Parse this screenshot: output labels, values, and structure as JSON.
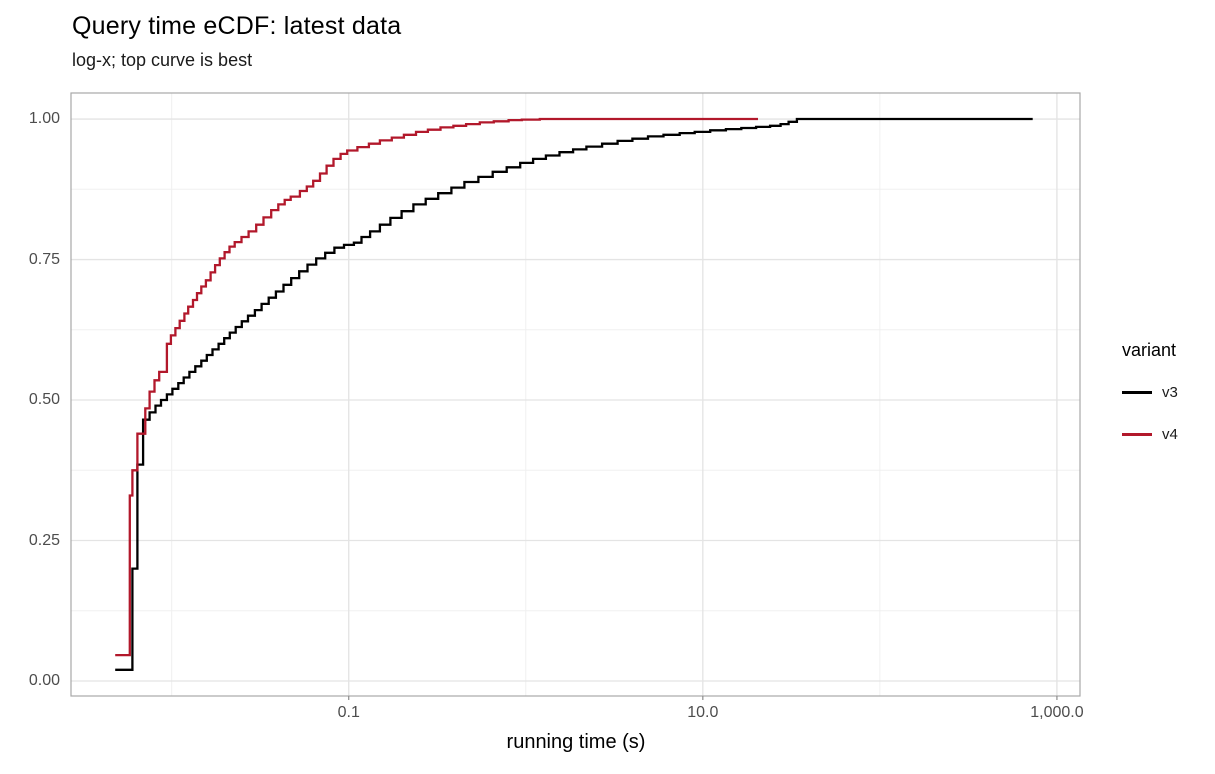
{
  "chart_data": {
    "type": "line",
    "subtype": "step-ecdf",
    "title": "Query time eCDF: latest data",
    "subtitle": "log-x; top curve is best",
    "xlabel": "running time (s)",
    "ylabel": "",
    "x_axis": {
      "scale": "log10",
      "min": 0.0027,
      "max": 1350,
      "major_ticks": [
        {
          "value": 0.1,
          "label": "0.1"
        },
        {
          "value": 10,
          "label": "10.0"
        },
        {
          "value": 1000,
          "label": "1,000.0"
        }
      ],
      "minor_ticks": [
        0.01,
        1,
        100
      ]
    },
    "y_axis": {
      "min": -0.0267,
      "max": 1.0463,
      "major_ticks": [
        {
          "value": 0.0,
          "label": "0.00"
        },
        {
          "value": 0.25,
          "label": "0.25"
        },
        {
          "value": 0.5,
          "label": "0.50"
        },
        {
          "value": 0.75,
          "label": "0.75"
        },
        {
          "value": 1.0,
          "label": "1.00"
        }
      ],
      "minor_ticks": [
        0.125,
        0.375,
        0.625,
        0.875
      ]
    },
    "legend": {
      "title": "variant",
      "position": "right"
    },
    "grid": true,
    "style": {
      "grid_major": "#e4e4e4",
      "grid_minor": "#f0f0f0",
      "panel_border": "#a8a8a8",
      "tick_mark": "#8c8c8c",
      "axis_text": "#4d4d4d"
    },
    "series": [
      {
        "name": "v3",
        "color": "#000000",
        "points": [
          [
            0.0048,
            0.02
          ],
          [
            0.006,
            0.2
          ],
          [
            0.0064,
            0.385
          ],
          [
            0.0069,
            0.465
          ],
          [
            0.0075,
            0.478
          ],
          [
            0.0081,
            0.49
          ],
          [
            0.0087,
            0.5
          ],
          [
            0.0094,
            0.51
          ],
          [
            0.0101,
            0.52
          ],
          [
            0.0109,
            0.53
          ],
          [
            0.0117,
            0.54
          ],
          [
            0.0126,
            0.55
          ],
          [
            0.0136,
            0.56
          ],
          [
            0.0147,
            0.57
          ],
          [
            0.0158,
            0.58
          ],
          [
            0.017,
            0.59
          ],
          [
            0.0184,
            0.6
          ],
          [
            0.0198,
            0.61
          ],
          [
            0.0213,
            0.62
          ],
          [
            0.023,
            0.63
          ],
          [
            0.0249,
            0.64
          ],
          [
            0.027,
            0.65
          ],
          [
            0.0295,
            0.66
          ],
          [
            0.0322,
            0.671
          ],
          [
            0.0353,
            0.682
          ],
          [
            0.0388,
            0.693
          ],
          [
            0.0428,
            0.705
          ],
          [
            0.0473,
            0.717
          ],
          [
            0.0525,
            0.729
          ],
          [
            0.0585,
            0.741
          ],
          [
            0.0655,
            0.752
          ],
          [
            0.0736,
            0.762
          ],
          [
            0.083,
            0.771
          ],
          [
            0.094,
            0.776
          ],
          [
            0.107,
            0.78
          ],
          [
            0.118,
            0.79
          ],
          [
            0.132,
            0.8
          ],
          [
            0.15,
            0.812
          ],
          [
            0.172,
            0.824
          ],
          [
            0.199,
            0.836
          ],
          [
            0.232,
            0.848
          ],
          [
            0.272,
            0.858
          ],
          [
            0.32,
            0.868
          ],
          [
            0.38,
            0.878
          ],
          [
            0.45,
            0.888
          ],
          [
            0.54,
            0.897
          ],
          [
            0.65,
            0.906
          ],
          [
            0.78,
            0.914
          ],
          [
            0.93,
            0.922
          ],
          [
            1.1,
            0.929
          ],
          [
            1.3,
            0.935
          ],
          [
            1.55,
            0.941
          ],
          [
            1.85,
            0.946
          ],
          [
            2.2,
            0.951
          ],
          [
            2.7,
            0.956
          ],
          [
            3.3,
            0.961
          ],
          [
            4.0,
            0.965
          ],
          [
            4.9,
            0.969
          ],
          [
            6.0,
            0.972
          ],
          [
            7.4,
            0.975
          ],
          [
            9.0,
            0.977
          ],
          [
            11.0,
            0.98
          ],
          [
            13.5,
            0.982
          ],
          [
            16.5,
            0.984
          ],
          [
            20.0,
            0.986
          ],
          [
            24.0,
            0.988
          ],
          [
            27.5,
            0.991
          ],
          [
            30.5,
            0.995
          ],
          [
            34.0,
            1.0
          ],
          [
            730.0,
            1.0
          ]
        ]
      },
      {
        "name": "v4",
        "color": "#b2182b",
        "points": [
          [
            0.0048,
            0.046
          ],
          [
            0.0058,
            0.33
          ],
          [
            0.006,
            0.375
          ],
          [
            0.0064,
            0.44
          ],
          [
            0.0071,
            0.485
          ],
          [
            0.0075,
            0.515
          ],
          [
            0.008,
            0.535
          ],
          [
            0.0085,
            0.55
          ],
          [
            0.0094,
            0.6
          ],
          [
            0.0099,
            0.615
          ],
          [
            0.0105,
            0.628
          ],
          [
            0.0111,
            0.641
          ],
          [
            0.0118,
            0.654
          ],
          [
            0.0124,
            0.666
          ],
          [
            0.0132,
            0.678
          ],
          [
            0.0139,
            0.69
          ],
          [
            0.0147,
            0.702
          ],
          [
            0.0156,
            0.713
          ],
          [
            0.0166,
            0.727
          ],
          [
            0.0176,
            0.74
          ],
          [
            0.0187,
            0.752
          ],
          [
            0.0199,
            0.763
          ],
          [
            0.0212,
            0.773
          ],
          [
            0.0227,
            0.781
          ],
          [
            0.0248,
            0.79
          ],
          [
            0.0272,
            0.8
          ],
          [
            0.03,
            0.812
          ],
          [
            0.033,
            0.825
          ],
          [
            0.0365,
            0.838
          ],
          [
            0.04,
            0.848
          ],
          [
            0.0435,
            0.856
          ],
          [
            0.047,
            0.862
          ],
          [
            0.053,
            0.872
          ],
          [
            0.058,
            0.88
          ],
          [
            0.063,
            0.89
          ],
          [
            0.0688,
            0.903
          ],
          [
            0.075,
            0.917
          ],
          [
            0.082,
            0.929
          ],
          [
            0.09,
            0.938
          ],
          [
            0.098,
            0.944
          ],
          [
            0.112,
            0.95
          ],
          [
            0.13,
            0.956
          ],
          [
            0.15,
            0.962
          ],
          [
            0.175,
            0.967
          ],
          [
            0.205,
            0.972
          ],
          [
            0.24,
            0.977
          ],
          [
            0.28,
            0.981
          ],
          [
            0.33,
            0.985
          ],
          [
            0.39,
            0.988
          ],
          [
            0.46,
            0.991
          ],
          [
            0.55,
            0.994
          ],
          [
            0.66,
            0.996
          ],
          [
            0.8,
            0.998
          ],
          [
            0.95,
            0.999
          ],
          [
            1.2,
            1.0
          ],
          [
            20.5,
            1.0
          ]
        ]
      }
    ]
  }
}
